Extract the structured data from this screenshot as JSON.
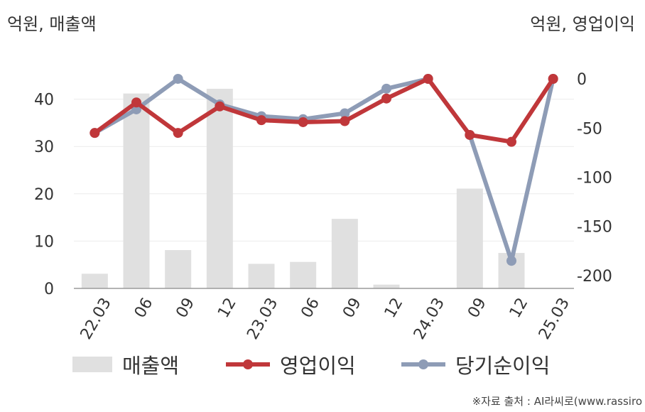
{
  "left_unit": "억원, 매출액",
  "right_unit": "억원, 영업이익",
  "source": "※자료 출처 : AI라씨로(www.rassiro",
  "chart_data": {
    "type": "bar+line",
    "categories": [
      "22.03",
      "06",
      "09",
      "12",
      "23.03",
      "06",
      "09",
      "12",
      "24.03",
      "09",
      "12",
      "25.03"
    ],
    "left_axis": {
      "ticks": [
        0,
        10,
        20,
        30,
        40
      ],
      "ylim": [
        0,
        47
      ]
    },
    "right_axis": {
      "ticks": [
        0,
        -50,
        -100,
        -150,
        -200
      ],
      "ylim": [
        -213,
        13
      ]
    },
    "bar_series": {
      "name": "매출액",
      "color": "#e0e0e0",
      "values": [
        3.1,
        41.2,
        8.1,
        42.2,
        5.2,
        5.6,
        14.7,
        0.8,
        null,
        21.1,
        7.5,
        null
      ]
    },
    "line_series": [
      {
        "name": "당기순이익",
        "color": "#8e9cb6",
        "values": [
          -55,
          -31,
          0,
          -26,
          -38,
          -41,
          -35,
          -10,
          0,
          -57,
          -185,
          0
        ]
      },
      {
        "name": "영업이익",
        "color": "#c0373a",
        "values": [
          -55,
          -24,
          -55,
          -28,
          -42,
          -44,
          -43,
          -20,
          0,
          -57,
          -64,
          0
        ]
      }
    ],
    "grid": true,
    "legend_position": "bottom"
  }
}
